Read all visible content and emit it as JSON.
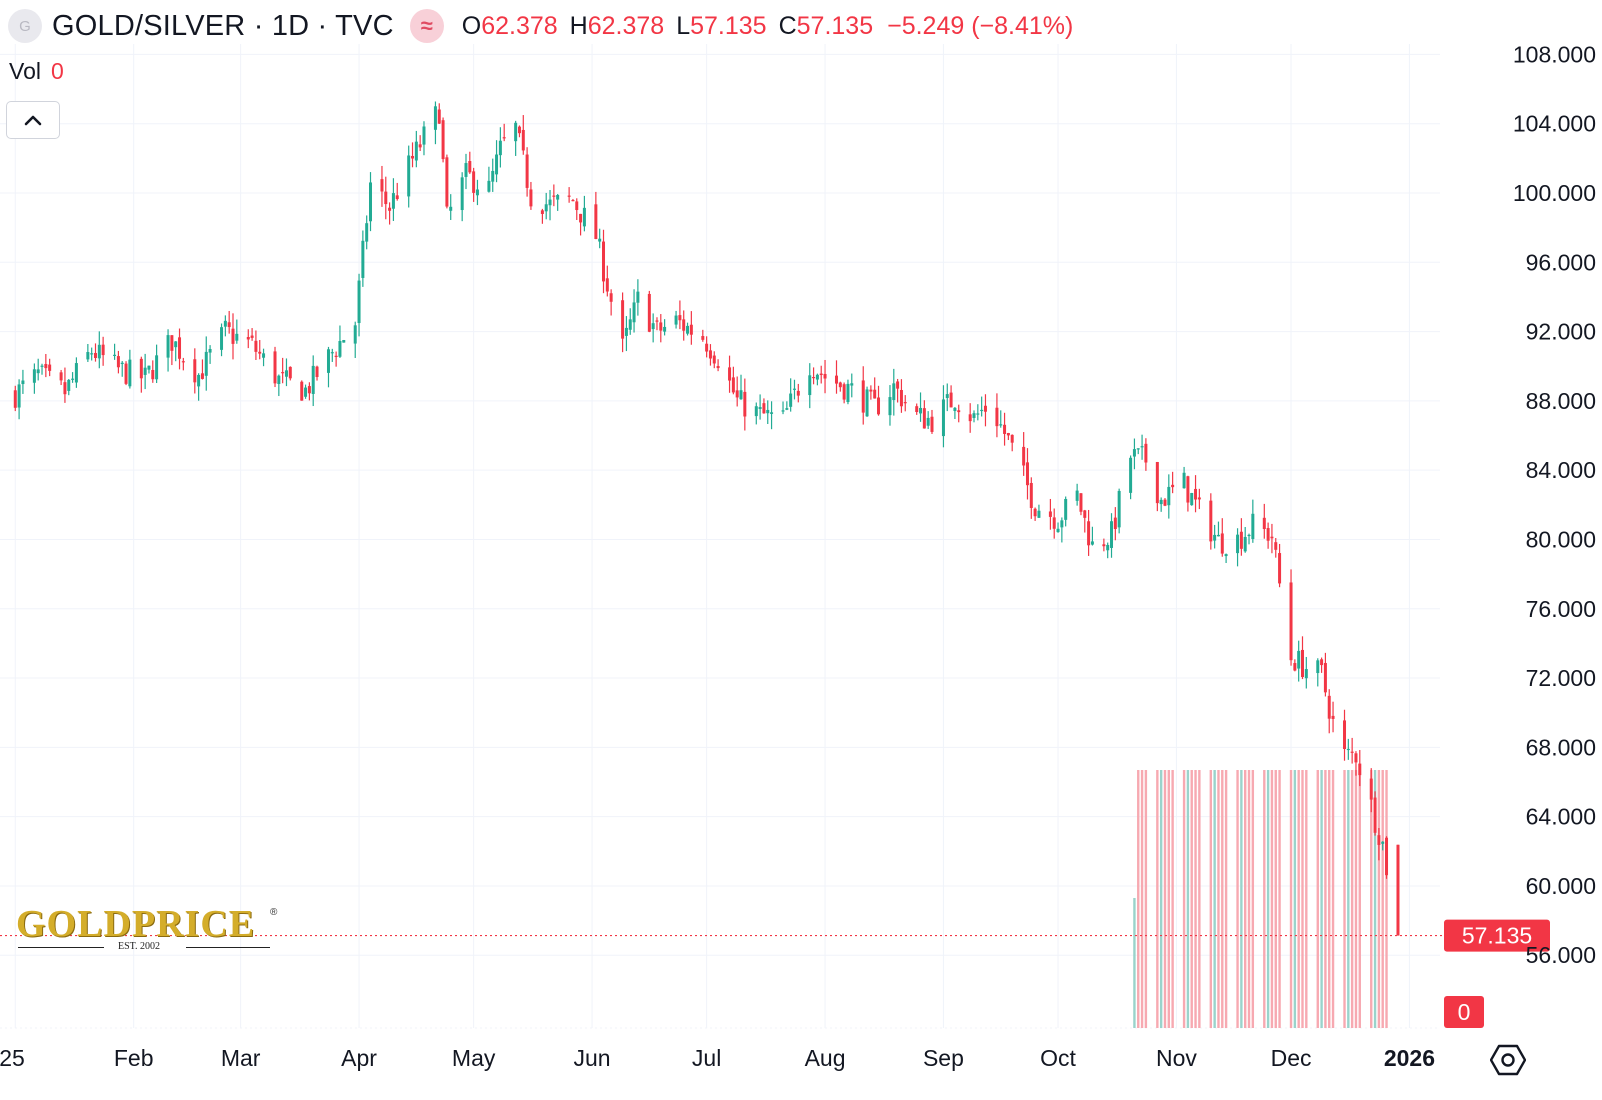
{
  "header": {
    "symbol_badge": "G",
    "title": "GOLD/SILVER · 1D · TVC",
    "source_icon": "wave-icon",
    "source_symbol": "≈",
    "open_label": "O",
    "open_value": "62.378",
    "high_label": "H",
    "high_value": "62.378",
    "low_label": "L",
    "low_value": "57.135",
    "close_label": "C",
    "close_value": "57.135",
    "change": "−5.249 (−8.41%)"
  },
  "volume": {
    "label": "Vol",
    "value": "0"
  },
  "logo": {
    "text": "GOLDPRICE",
    "est": "EST. 2002",
    "reg": "®"
  },
  "colors": {
    "up": "#22ab94",
    "down": "#f23645",
    "grid": "#f0f3fa",
    "text": "#131722"
  },
  "chart_data": {
    "type": "candlestick",
    "y_axis": {
      "ticks": [
        "108.000",
        "104.000",
        "100.000",
        "96.000",
        "92.000",
        "88.000",
        "84.000",
        "80.000",
        "76.000",
        "72.000",
        "68.000",
        "64.000",
        "60.000",
        "56.000"
      ],
      "range": [
        51.8,
        108.6
      ]
    },
    "x_axis": {
      "labels": [
        "25",
        "Feb",
        "Mar",
        "Apr",
        "May",
        "Jun",
        "Jul",
        "Aug",
        "Sep",
        "Oct",
        "Nov",
        "Dec",
        "2026"
      ]
    },
    "last_price": "57.135",
    "last_volume": "0",
    "anchors": [
      [
        "2025-01-01",
        88.4
      ],
      [
        "2025-01-07",
        89.5
      ],
      [
        "2025-01-14",
        88.5
      ],
      [
        "2025-01-21",
        90.9
      ],
      [
        "2025-01-28",
        89.8
      ],
      [
        "2025-02-04",
        89.3
      ],
      [
        "2025-02-11",
        91.5
      ],
      [
        "2025-02-18",
        89.5
      ],
      [
        "2025-02-25",
        92.0
      ],
      [
        "2025-03-04",
        91.2
      ],
      [
        "2025-03-11",
        89.2
      ],
      [
        "2025-03-18",
        88.6
      ],
      [
        "2025-03-25",
        90.8
      ],
      [
        "2025-03-31",
        92.5
      ],
      [
        "2025-04-04",
        100.5
      ],
      [
        "2025-04-09",
        99.2
      ],
      [
        "2025-04-14",
        101.5
      ],
      [
        "2025-04-17",
        102.8
      ],
      [
        "2025-04-22",
        104.8
      ],
      [
        "2025-04-24",
        98.5
      ],
      [
        "2025-04-29",
        101.0
      ],
      [
        "2025-05-05",
        100.2
      ],
      [
        "2025-05-08",
        102.5
      ],
      [
        "2025-05-12",
        103.7
      ],
      [
        "2025-05-16",
        99.8
      ],
      [
        "2025-05-21",
        99.3
      ],
      [
        "2025-05-27",
        99.6
      ],
      [
        "2025-06-02",
        97.5
      ],
      [
        "2025-06-09",
        91.0
      ],
      [
        "2025-06-13",
        93.8
      ],
      [
        "2025-06-18",
        92.0
      ],
      [
        "2025-06-23",
        92.6
      ],
      [
        "2025-06-30",
        91.7
      ],
      [
        "2025-07-04",
        90.5
      ],
      [
        "2025-07-09",
        88.0
      ],
      [
        "2025-07-15",
        87.2
      ],
      [
        "2025-07-21",
        86.9
      ],
      [
        "2025-07-28",
        90.2
      ],
      [
        "2025-08-01",
        89.4
      ],
      [
        "2025-08-08",
        88.6
      ],
      [
        "2025-08-14",
        87.6
      ],
      [
        "2025-08-19",
        88.8
      ],
      [
        "2025-08-25",
        87.1
      ],
      [
        "2025-08-29",
        86.9
      ],
      [
        "2025-09-04",
        88.2
      ],
      [
        "2025-09-09",
        87.0
      ],
      [
        "2025-09-13",
        87.8
      ],
      [
        "2025-09-18",
        85.7
      ],
      [
        "2025-09-25",
        82.0
      ],
      [
        "2025-10-01",
        81.2
      ],
      [
        "2025-10-06",
        82.5
      ],
      [
        "2025-10-10",
        79.6
      ],
      [
        "2025-10-15",
        80.3
      ],
      [
        "2025-10-20",
        84.8
      ],
      [
        "2025-10-24",
        84.6
      ],
      [
        "2025-10-28",
        82.3
      ],
      [
        "2025-11-03",
        83.2
      ],
      [
        "2025-11-07",
        81.6
      ],
      [
        "2025-11-12",
        79.9
      ],
      [
        "2025-11-17",
        80.0
      ],
      [
        "2025-11-21",
        80.8
      ],
      [
        "2025-11-26",
        80.2
      ],
      [
        "2025-12-01",
        73.2
      ],
      [
        "2025-12-05",
        72.6
      ],
      [
        "2025-12-09",
        72.2
      ],
      [
        "2025-12-14",
        67.5
      ],
      [
        "2025-12-18",
        67.6
      ],
      [
        "2025-12-22",
        64.6
      ],
      [
        "2025-12-25",
        62.4
      ],
      [
        "2025-12-29",
        57.135
      ]
    ],
    "volume_bars": {
      "start": "2025-10-21",
      "end": "2025-12-26",
      "value": 0
    }
  }
}
